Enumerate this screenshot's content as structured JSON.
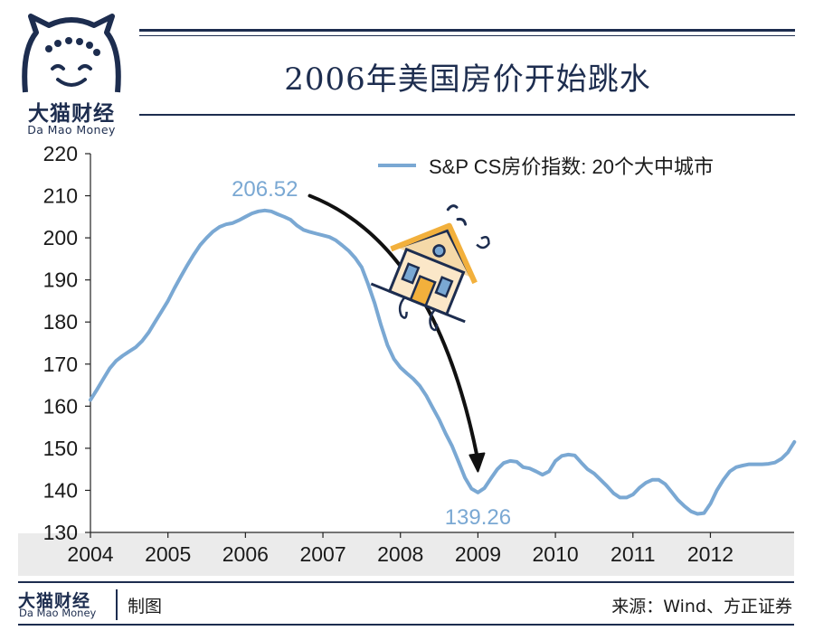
{
  "brand": {
    "name_cn": "大猫财经",
    "name_en": "Da Mao Money",
    "logo_icon": "cat-face-icon",
    "color": "#1d2d4f"
  },
  "title": "2006年美国房价开始跳水",
  "footer": {
    "made_label": "制图",
    "source": "来源：Wind、方正证券"
  },
  "chart_data": {
    "type": "line",
    "title": "2006年美国房价开始跳水",
    "xlabel": "",
    "ylabel": "",
    "x_ticks": [
      "2004",
      "2005",
      "2006",
      "2007",
      "2008",
      "2009",
      "2010",
      "2011",
      "2012"
    ],
    "y_ticks": [
      130,
      140,
      150,
      160,
      170,
      180,
      190,
      200,
      210,
      220
    ],
    "ylim": [
      130,
      220
    ],
    "xlim": [
      2004.0,
      2013.08
    ],
    "grid": false,
    "legend": "top-right",
    "series": [
      {
        "name": "S&P CS房价指数: 20个大中城市",
        "color": "#7aa8d3",
        "points": [
          [
            2004.0,
            161.5
          ],
          [
            2004.083,
            163.9
          ],
          [
            2004.167,
            166.5
          ],
          [
            2004.25,
            169.0
          ],
          [
            2004.333,
            170.8
          ],
          [
            2004.417,
            172.0
          ],
          [
            2004.5,
            173.0
          ],
          [
            2004.583,
            174.0
          ],
          [
            2004.667,
            175.5
          ],
          [
            2004.75,
            177.5
          ],
          [
            2004.833,
            180.0
          ],
          [
            2004.917,
            182.5
          ],
          [
            2005.0,
            185.0
          ],
          [
            2005.083,
            188.0
          ],
          [
            2005.167,
            190.8
          ],
          [
            2005.25,
            193.5
          ],
          [
            2005.333,
            196.0
          ],
          [
            2005.417,
            198.3
          ],
          [
            2005.5,
            200.0
          ],
          [
            2005.583,
            201.5
          ],
          [
            2005.667,
            202.6
          ],
          [
            2005.75,
            203.2
          ],
          [
            2005.833,
            203.5
          ],
          [
            2005.917,
            204.2
          ],
          [
            2006.0,
            205.0
          ],
          [
            2006.083,
            205.8
          ],
          [
            2006.167,
            206.3
          ],
          [
            2006.25,
            206.52
          ],
          [
            2006.333,
            206.3
          ],
          [
            2006.417,
            205.6
          ],
          [
            2006.5,
            205.0
          ],
          [
            2006.583,
            204.3
          ],
          [
            2006.667,
            202.9
          ],
          [
            2006.75,
            201.9
          ],
          [
            2006.833,
            201.4
          ],
          [
            2006.917,
            201.0
          ],
          [
            2007.0,
            200.6
          ],
          [
            2007.083,
            200.2
          ],
          [
            2007.167,
            199.4
          ],
          [
            2007.25,
            198.2
          ],
          [
            2007.333,
            196.9
          ],
          [
            2007.417,
            195.2
          ],
          [
            2007.5,
            193.0
          ],
          [
            2007.583,
            189.0
          ],
          [
            2007.667,
            184.5
          ],
          [
            2007.75,
            179.2
          ],
          [
            2007.833,
            174.5
          ],
          [
            2007.917,
            171.2
          ],
          [
            2008.0,
            169.2
          ],
          [
            2008.083,
            167.8
          ],
          [
            2008.167,
            166.5
          ],
          [
            2008.25,
            164.8
          ],
          [
            2008.333,
            162.5
          ],
          [
            2008.417,
            159.6
          ],
          [
            2008.5,
            156.8
          ],
          [
            2008.583,
            153.5
          ],
          [
            2008.667,
            150.5
          ],
          [
            2008.75,
            146.8
          ],
          [
            2008.833,
            143.0
          ],
          [
            2008.917,
            140.4
          ],
          [
            2009.0,
            139.5
          ],
          [
            2009.083,
            140.5
          ],
          [
            2009.167,
            142.8
          ],
          [
            2009.25,
            145.0
          ],
          [
            2009.333,
            146.5
          ],
          [
            2009.417,
            147.0
          ],
          [
            2009.5,
            146.8
          ],
          [
            2009.583,
            145.5
          ],
          [
            2009.667,
            145.2
          ],
          [
            2009.75,
            144.5
          ],
          [
            2009.833,
            143.7
          ],
          [
            2009.917,
            144.5
          ],
          [
            2010.0,
            147.0
          ],
          [
            2010.083,
            148.2
          ],
          [
            2010.167,
            148.5
          ],
          [
            2010.25,
            148.3
          ],
          [
            2010.333,
            146.6
          ],
          [
            2010.417,
            145.0
          ],
          [
            2010.5,
            144.0
          ],
          [
            2010.583,
            142.5
          ],
          [
            2010.667,
            141.0
          ],
          [
            2010.75,
            139.3
          ],
          [
            2010.833,
            138.3
          ],
          [
            2010.917,
            138.3
          ],
          [
            2011.0,
            139.0
          ],
          [
            2011.083,
            140.6
          ],
          [
            2011.167,
            141.8
          ],
          [
            2011.25,
            142.5
          ],
          [
            2011.333,
            142.5
          ],
          [
            2011.417,
            141.5
          ],
          [
            2011.5,
            139.6
          ],
          [
            2011.583,
            137.7
          ],
          [
            2011.667,
            136.2
          ],
          [
            2011.75,
            135.0
          ],
          [
            2011.833,
            134.4
          ],
          [
            2011.917,
            134.6
          ],
          [
            2012.0,
            136.8
          ],
          [
            2012.083,
            140.0
          ],
          [
            2012.167,
            142.5
          ],
          [
            2012.25,
            144.5
          ],
          [
            2012.333,
            145.5
          ],
          [
            2012.417,
            145.9
          ],
          [
            2012.5,
            146.2
          ],
          [
            2012.583,
            146.2
          ],
          [
            2012.667,
            146.2
          ],
          [
            2012.75,
            146.3
          ],
          [
            2012.833,
            146.6
          ],
          [
            2012.917,
            147.5
          ],
          [
            2013.0,
            149.0
          ],
          [
            2013.083,
            151.5
          ]
        ]
      }
    ],
    "annotations": [
      {
        "text": "206.52",
        "x": 2006.25,
        "y": 206.52,
        "color": "#7aa8d3",
        "position": "above"
      },
      {
        "text": "139.26",
        "x": 2009.0,
        "y": 139.26,
        "color": "#7aa8d3",
        "position": "below"
      }
    ],
    "arrow": {
      "from": [
        2006.83,
        210.0
      ],
      "to": [
        2009.0,
        144.5
      ],
      "color": "#111111"
    },
    "illustration": "falling-house-icon"
  }
}
